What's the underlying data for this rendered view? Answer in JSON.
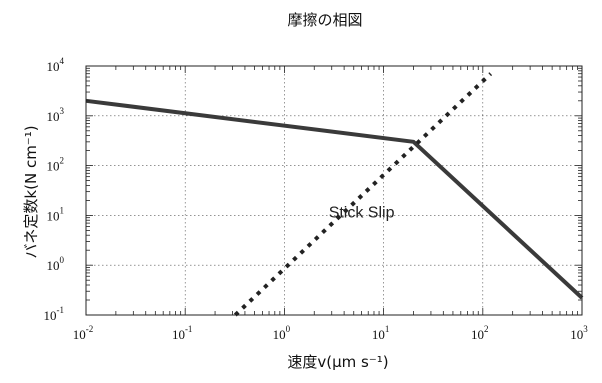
{
  "chart_data": {
    "type": "line",
    "title": "摩擦の相図",
    "xlabel": "速度v(μm s⁻¹)",
    "ylabel": "バネ定数k(N cm⁻¹)",
    "x_scale": "log",
    "y_scale": "log",
    "xlim": [
      0.01,
      1000
    ],
    "ylim": [
      0.1,
      10000
    ],
    "x_ticks": [
      {
        "value": 0.01,
        "base": "10",
        "exp": "-2"
      },
      {
        "value": 0.1,
        "base": "10",
        "exp": "-1"
      },
      {
        "value": 1,
        "base": "10",
        "exp": "0"
      },
      {
        "value": 10,
        "base": "10",
        "exp": "1"
      },
      {
        "value": 100,
        "base": "10",
        "exp": "2"
      },
      {
        "value": 1000,
        "base": "10",
        "exp": "3"
      }
    ],
    "y_ticks": [
      {
        "value": 0.1,
        "base": "10",
        "exp": "-1"
      },
      {
        "value": 1,
        "base": "10",
        "exp": "0"
      },
      {
        "value": 10,
        "base": "10",
        "exp": "1"
      },
      {
        "value": 100,
        "base": "10",
        "exp": "2"
      },
      {
        "value": 1000,
        "base": "10",
        "exp": "3"
      },
      {
        "value": 10000,
        "base": "10",
        "exp": "4"
      }
    ],
    "grid": true,
    "series": [
      {
        "style": "solid",
        "color": "#3a3a3a",
        "points": [
          [
            0.01,
            2000
          ],
          [
            20,
            300
          ],
          [
            1000,
            0.22
          ]
        ]
      },
      {
        "style": "dotted",
        "color": "#222222",
        "points": [
          [
            0.32,
            0.1
          ],
          [
            120,
            7000
          ]
        ]
      }
    ],
    "annotations": [
      {
        "text": "Stick Slip",
        "x": 6,
        "y": 9
      }
    ]
  }
}
